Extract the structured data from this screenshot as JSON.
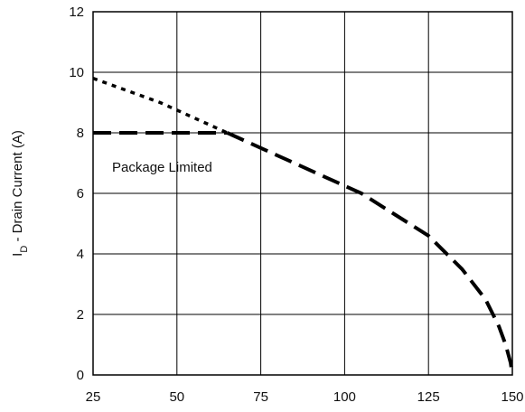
{
  "chart_data": {
    "type": "line",
    "title": "",
    "xlabel": "",
    "ylabel_main": "I",
    "ylabel_sub": "D",
    "ylabel_rest": " - Drain Current (A)",
    "xlim": [
      25,
      150
    ],
    "ylim": [
      0,
      12
    ],
    "x_ticks": [
      25,
      50,
      75,
      100,
      125,
      150
    ],
    "y_ticks": [
      0,
      2,
      4,
      6,
      8,
      10,
      12
    ],
    "grid": true,
    "annotation": "Package Limited",
    "series": [
      {
        "style": "dotted",
        "color": "#000000",
        "x": [
          25,
          35,
          45,
          55,
          65
        ],
        "y": [
          9.8,
          9.4,
          9.0,
          8.5,
          8.0
        ]
      },
      {
        "style": "dashed",
        "color": "#000000",
        "x": [
          25,
          65
        ],
        "y": [
          8.0,
          8.0
        ]
      },
      {
        "style": "dashed",
        "color": "#000000",
        "x": [
          65,
          75,
          85,
          95,
          105,
          115,
          125,
          135,
          142,
          146,
          148,
          149.5,
          150
        ],
        "y": [
          8.0,
          7.5,
          7.0,
          6.5,
          6.0,
          5.3,
          4.6,
          3.5,
          2.5,
          1.6,
          1.0,
          0.4,
          0
        ]
      }
    ]
  }
}
